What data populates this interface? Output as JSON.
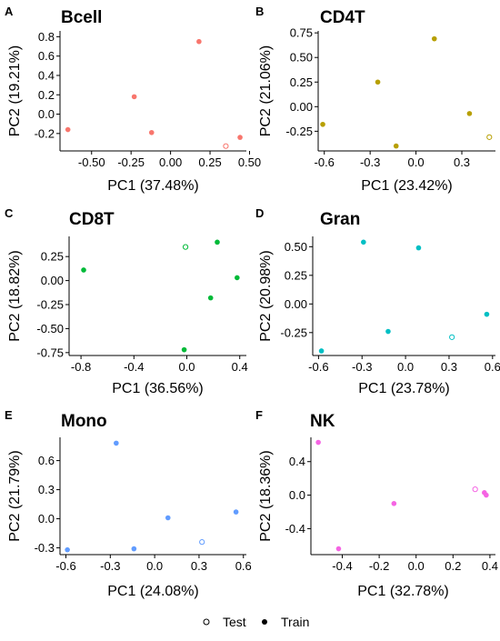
{
  "legend": {
    "items": [
      {
        "label": "Test",
        "marker": "open-circle"
      },
      {
        "label": "Train",
        "marker": "filled-circle"
      }
    ],
    "placement": "bottom"
  },
  "chart_data": [
    {
      "type": "scatter",
      "letter": "A",
      "title": "Bcell",
      "color": "#F8766D",
      "xlabel": "PC1 (37.48%)",
      "ylabel": "PC2 (19.21%)",
      "xlim": [
        -0.7,
        0.48
      ],
      "ylim": [
        -0.38,
        0.86
      ],
      "xticks": [
        -0.5,
        -0.25,
        0.0,
        0.25,
        0.5
      ],
      "xtick_labels": [
        "-0.50",
        "-0.25",
        "0.00",
        "0.25",
        "0.50"
      ],
      "yticks": [
        -0.2,
        0.0,
        0.2,
        0.4,
        0.6,
        0.8
      ],
      "ytick_labels": [
        "-0.2",
        "0.0",
        "0.2",
        "0.4",
        "0.6",
        "0.8"
      ],
      "points": [
        {
          "x": 0.18,
          "y": 0.75,
          "set": "Train"
        },
        {
          "x": -0.23,
          "y": 0.18,
          "set": "Train"
        },
        {
          "x": -0.65,
          "y": -0.16,
          "set": "Train"
        },
        {
          "x": -0.12,
          "y": -0.19,
          "set": "Train"
        },
        {
          "x": 0.44,
          "y": -0.24,
          "set": "Train"
        },
        {
          "x": 0.35,
          "y": -0.33,
          "set": "Test"
        }
      ]
    },
    {
      "type": "scatter",
      "letter": "B",
      "title": "CD4T",
      "color": "#B79F00",
      "xlabel": "PC1 (23.42%)",
      "ylabel": "PC2 (21.06%)",
      "xlim": [
        -0.64,
        0.52
      ],
      "ylim": [
        -0.45,
        0.77
      ],
      "xticks": [
        -0.6,
        -0.3,
        0.0,
        0.3
      ],
      "xtick_labels": [
        "-0.6",
        "-0.3",
        "0.0",
        "0.3"
      ],
      "yticks": [
        -0.25,
        0.0,
        0.25,
        0.5,
        0.75
      ],
      "ytick_labels": [
        "-0.25",
        "0.00",
        "0.25",
        "0.50",
        "0.75"
      ],
      "points": [
        {
          "x": 0.12,
          "y": 0.69,
          "set": "Train"
        },
        {
          "x": -0.25,
          "y": 0.25,
          "set": "Train"
        },
        {
          "x": -0.61,
          "y": -0.18,
          "set": "Train"
        },
        {
          "x": 0.35,
          "y": -0.07,
          "set": "Train"
        },
        {
          "x": -0.13,
          "y": -0.4,
          "set": "Train"
        },
        {
          "x": 0.48,
          "y": -0.31,
          "set": "Test"
        }
      ]
    },
    {
      "type": "scatter",
      "letter": "C",
      "title": "CD8T",
      "color": "#00BA38",
      "xlabel": "PC1 (36.56%)",
      "ylabel": "PC2 (18.82%)",
      "xlim": [
        -0.89,
        0.45
      ],
      "ylim": [
        -0.78,
        0.46
      ],
      "xticks": [
        -0.8,
        -0.4,
        0.0,
        0.4
      ],
      "xtick_labels": [
        "-0.8",
        "-0.4",
        "0.0",
        "0.4"
      ],
      "yticks": [
        -0.75,
        -0.5,
        -0.25,
        0.0,
        0.25
      ],
      "ytick_labels": [
        "-0.75",
        "-0.50",
        "-0.25",
        "0.00",
        "0.25"
      ],
      "points": [
        {
          "x": 0.23,
          "y": 0.4,
          "set": "Train"
        },
        {
          "x": -0.78,
          "y": 0.11,
          "set": "Train"
        },
        {
          "x": 0.38,
          "y": 0.03,
          "set": "Train"
        },
        {
          "x": 0.18,
          "y": -0.18,
          "set": "Train"
        },
        {
          "x": -0.02,
          "y": -0.72,
          "set": "Train"
        },
        {
          "x": -0.01,
          "y": 0.35,
          "set": "Test"
        }
      ]
    },
    {
      "type": "scatter",
      "letter": "D",
      "title": "Gran",
      "color": "#00BFC4",
      "xlabel": "PC1 (23.78%)",
      "ylabel": "PC2 (20.98%)",
      "xlim": [
        -0.64,
        0.62
      ],
      "ylim": [
        -0.45,
        0.59
      ],
      "xticks": [
        -0.6,
        -0.3,
        0.0,
        0.3,
        0.6
      ],
      "xtick_labels": [
        "-0.6",
        "-0.3",
        "0.0",
        "0.3",
        "0.6"
      ],
      "yticks": [
        -0.25,
        0.0,
        0.25,
        0.5
      ],
      "ytick_labels": [
        "-0.25",
        "0.00",
        "0.25",
        "0.50"
      ],
      "points": [
        {
          "x": -0.29,
          "y": 0.54,
          "set": "Train"
        },
        {
          "x": 0.09,
          "y": 0.49,
          "set": "Train"
        },
        {
          "x": 0.56,
          "y": -0.09,
          "set": "Train"
        },
        {
          "x": -0.12,
          "y": -0.24,
          "set": "Train"
        },
        {
          "x": -0.58,
          "y": -0.41,
          "set": "Train"
        },
        {
          "x": 0.32,
          "y": -0.29,
          "set": "Test"
        }
      ]
    },
    {
      "type": "scatter",
      "letter": "E",
      "title": "Mono",
      "color": "#619CFF",
      "xlabel": "PC1 (24.08%)",
      "ylabel": "PC2 (21.79%)",
      "xlim": [
        -0.64,
        0.62
      ],
      "ylim": [
        -0.37,
        0.84
      ],
      "xticks": [
        -0.6,
        -0.3,
        0.0,
        0.3,
        0.6
      ],
      "xtick_labels": [
        "-0.6",
        "-0.3",
        "0.0",
        "0.3",
        "0.6"
      ],
      "yticks": [
        -0.3,
        0.0,
        0.3,
        0.6
      ],
      "ytick_labels": [
        "-0.3",
        "0.0",
        "0.3",
        "0.6"
      ],
      "points": [
        {
          "x": -0.26,
          "y": 0.78,
          "set": "Train"
        },
        {
          "x": 0.09,
          "y": 0.01,
          "set": "Train"
        },
        {
          "x": 0.55,
          "y": 0.07,
          "set": "Train"
        },
        {
          "x": -0.14,
          "y": -0.31,
          "set": "Train"
        },
        {
          "x": -0.59,
          "y": -0.32,
          "set": "Train"
        },
        {
          "x": 0.32,
          "y": -0.24,
          "set": "Test"
        }
      ]
    },
    {
      "type": "scatter",
      "letter": "F",
      "title": "NK",
      "color": "#F564E3",
      "xlabel": "PC1 (32.78%)",
      "ylabel": "PC2 (18.36%)",
      "xlim": [
        -0.57,
        0.43
      ],
      "ylim": [
        -0.71,
        0.69
      ],
      "xticks": [
        -0.4,
        -0.2,
        0.0,
        0.2,
        0.4
      ],
      "xtick_labels": [
        "-0.4",
        "-0.2",
        "0.0",
        "0.2",
        "0.4"
      ],
      "yticks": [
        -0.4,
        0.0,
        0.4
      ],
      "ytick_labels": [
        "-0.4",
        "0.0",
        "0.4"
      ],
      "points": [
        {
          "x": -0.53,
          "y": 0.63,
          "set": "Train"
        },
        {
          "x": -0.12,
          "y": -0.1,
          "set": "Train"
        },
        {
          "x": 0.37,
          "y": 0.03,
          "set": "Train"
        },
        {
          "x": 0.38,
          "y": 0.0,
          "set": "Train"
        },
        {
          "x": -0.42,
          "y": -0.64,
          "set": "Train"
        },
        {
          "x": 0.32,
          "y": 0.07,
          "set": "Test"
        }
      ]
    }
  ]
}
